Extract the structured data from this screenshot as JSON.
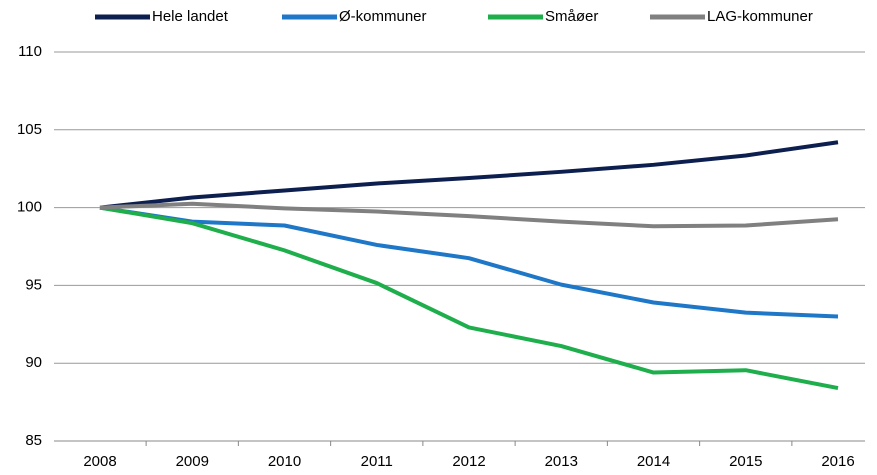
{
  "chart_data": {
    "type": "line",
    "categories": [
      "2008",
      "2009",
      "2010",
      "2011",
      "2012",
      "2013",
      "2014",
      "2015",
      "2016"
    ],
    "series": [
      {
        "name": "Hele landet",
        "color": "#0d1f4f",
        "values": [
          100,
          100.65,
          101.1,
          101.55,
          101.9,
          102.3,
          102.75,
          103.35,
          104.2
        ]
      },
      {
        "name": "Ø-kommuner",
        "color": "#1f77c8",
        "values": [
          100,
          99.1,
          98.85,
          97.6,
          96.75,
          95.05,
          93.9,
          93.25,
          93.0
        ]
      },
      {
        "name": "Småøer",
        "color": "#1fae4c",
        "values": [
          100,
          99.0,
          97.25,
          95.15,
          92.3,
          91.1,
          89.4,
          89.55,
          88.4
        ]
      },
      {
        "name": "LAG-kommuner",
        "color": "#808080",
        "values": [
          100,
          100.25,
          99.95,
          99.75,
          99.45,
          99.1,
          98.8,
          98.85,
          99.25
        ]
      }
    ],
    "ylim": [
      85,
      110
    ],
    "yticks": [
      85,
      90,
      95,
      100,
      105,
      110
    ],
    "grid": true,
    "legend": "top"
  }
}
